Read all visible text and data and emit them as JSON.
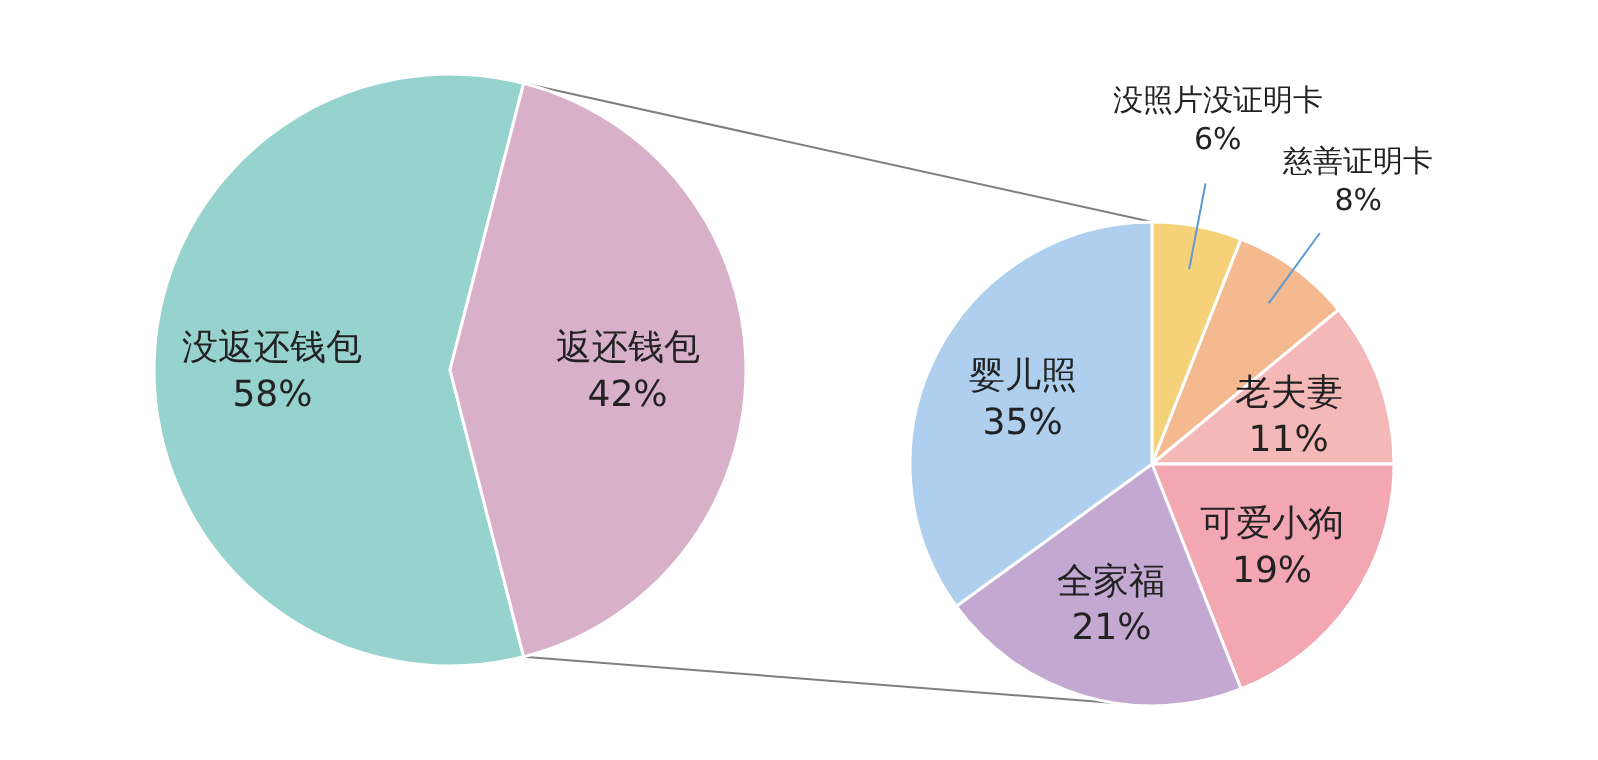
{
  "chart_data": [
    {
      "type": "pie",
      "categories": [
        "没返还钱包",
        "返还钱包"
      ],
      "values": [
        58,
        42
      ],
      "colors": [
        "#96d2ce",
        "#d9b0c9"
      ],
      "value_labels": [
        "58%",
        "42%"
      ]
    },
    {
      "type": "pie",
      "categories": [
        "没照片没证明卡",
        "慈善证明卡",
        "老夫妻",
        "可爱小狗",
        "全家福",
        "婴儿照"
      ],
      "values": [
        6,
        8,
        11,
        19,
        21,
        35
      ],
      "colors": [
        "#f5d27a",
        "#f4b98e",
        "#f4b8b8",
        "#f2a7b3",
        "#c3a9d2",
        "#aecfee"
      ],
      "value_labels": [
        "6%",
        "8%",
        "11%",
        "19%",
        "21%",
        "35%"
      ]
    }
  ]
}
